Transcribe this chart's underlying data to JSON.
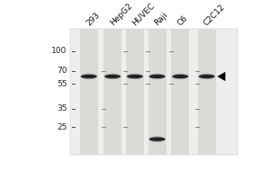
{
  "fig_bg": "#ffffff",
  "gel_bg": "#f0eeec",
  "lane_color": "#dcdad6",
  "lane_color_dark": "#c8c5be",
  "band_color": "#1a1a1a",
  "lane_labels": [
    "293",
    "HepG2",
    "HUVEC",
    "Raji",
    "C6",
    "C2C12"
  ],
  "mw_markers": [
    100,
    70,
    55,
    35,
    25
  ],
  "bands_main": [
    {
      "lane": 0,
      "mw": 63
    },
    {
      "lane": 1,
      "mw": 63
    },
    {
      "lane": 2,
      "mw": 63
    },
    {
      "lane": 3,
      "mw": 63
    },
    {
      "lane": 3,
      "mw": 20
    },
    {
      "lane": 4,
      "mw": 63
    },
    {
      "lane": 5,
      "mw": 63
    }
  ],
  "ladder_marks": [
    {
      "lane": 1,
      "mw": 70
    },
    {
      "lane": 1,
      "mw": 35
    },
    {
      "lane": 1,
      "mw": 25
    },
    {
      "lane": 2,
      "mw": 100
    },
    {
      "lane": 2,
      "mw": 70
    },
    {
      "lane": 2,
      "mw": 55
    },
    {
      "lane": 2,
      "mw": 25
    },
    {
      "lane": 3,
      "mw": 100
    },
    {
      "lane": 3,
      "mw": 70
    },
    {
      "lane": 3,
      "mw": 55
    },
    {
      "lane": 4,
      "mw": 100
    },
    {
      "lane": 4,
      "mw": 55
    },
    {
      "lane": 5,
      "mw": 70
    },
    {
      "lane": 5,
      "mw": 55
    },
    {
      "lane": 5,
      "mw": 35
    },
    {
      "lane": 5,
      "mw": 25
    }
  ],
  "arrow_lane": 5,
  "arrow_mw": 63,
  "label_fontsize": 6.5,
  "mw_fontsize": 6.5,
  "num_lanes": 6
}
